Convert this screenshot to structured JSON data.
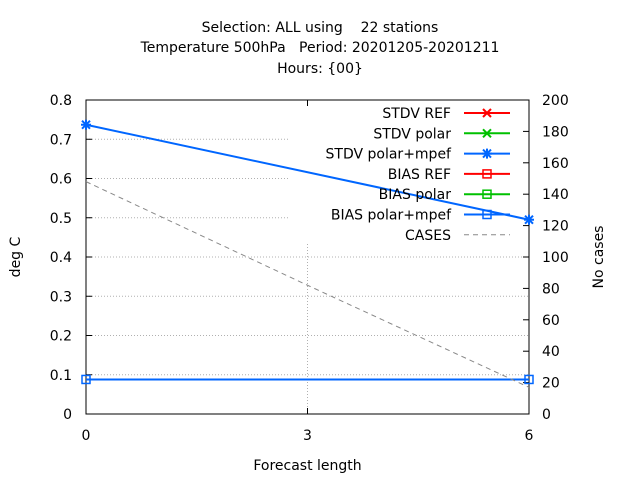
{
  "chart_data": {
    "type": "line",
    "title": [
      "Selection: ALL using    22 stations",
      "Temperature 500hPa   Period: 20201205-20201211",
      "Hours: {00}"
    ],
    "xlabel": "Forecast length",
    "ylabel": "deg C",
    "y2label": "No cases",
    "x_ticks": [
      "0",
      "3",
      "6"
    ],
    "y_ticks": [
      "0",
      "0.1",
      "0.2",
      "0.3",
      "0.4",
      "0.5",
      "0.6",
      "0.7",
      "0.8"
    ],
    "y2_ticks": [
      "0",
      "20",
      "40",
      "60",
      "80",
      "100",
      "120",
      "140",
      "160",
      "180",
      "200"
    ],
    "xlim": [
      0,
      6
    ],
    "ylim": [
      0,
      0.8
    ],
    "y2lim": [
      0,
      200
    ],
    "grid": true,
    "legend_position": "top-right",
    "x": [
      0,
      3,
      6
    ],
    "series": [
      {
        "name": "STDV REF",
        "color": "#ff0000",
        "marker": "x",
        "axis": "y1",
        "values": [
          null,
          null,
          null
        ]
      },
      {
        "name": "STDV polar",
        "color": "#00c000",
        "marker": "x",
        "axis": "y1",
        "values": [
          null,
          null,
          null
        ]
      },
      {
        "name": "STDV polar+mpef",
        "color": "#0066ff",
        "marker": "star",
        "axis": "y1",
        "values": [
          0.737,
          null,
          0.495
        ]
      },
      {
        "name": "BIAS REF",
        "color": "#ff0000",
        "marker": "square",
        "axis": "y1",
        "values": [
          null,
          null,
          null
        ]
      },
      {
        "name": "BIAS polar",
        "color": "#00c000",
        "marker": "square",
        "axis": "y1",
        "values": [
          null,
          null,
          null
        ]
      },
      {
        "name": "BIAS polar+mpef",
        "color": "#0066ff",
        "marker": "square",
        "axis": "y1",
        "values": [
          0.088,
          0.088,
          0.088
        ]
      },
      {
        "name": "CASES",
        "color": "#888888",
        "marker": "none",
        "axis": "y2",
        "dashed": true,
        "values": [
          148,
          82,
          17
        ]
      }
    ]
  }
}
